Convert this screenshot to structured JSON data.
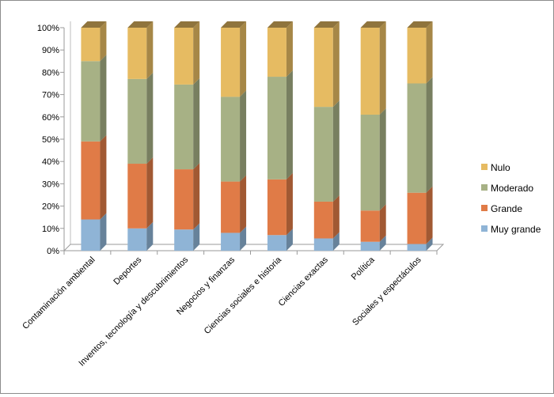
{
  "chart_data": {
    "type": "bar",
    "stacked": true,
    "percent": true,
    "three_d": true,
    "title": "",
    "xlabel": "",
    "ylabel": "",
    "ylim": [
      0,
      100
    ],
    "yticks": [
      "0%",
      "10%",
      "20%",
      "30%",
      "40%",
      "50%",
      "60%",
      "70%",
      "80%",
      "90%",
      "100%"
    ],
    "categories": [
      "Contaminación ambiental",
      "Deportes",
      "Inventos, tecnología y descubrimientos",
      "Negocios y finanzas",
      "Ciencias sociales e historia",
      "Ciencias exactas",
      "Política",
      "Sociales y espectáculos"
    ],
    "series": [
      {
        "name": "Muy grande",
        "color": "#8fb4d6",
        "values": [
          14,
          10,
          9.5,
          8,
          7,
          5.5,
          4,
          3
        ]
      },
      {
        "name": "Grande",
        "color": "#e07b47",
        "values": [
          35,
          29,
          27,
          23,
          25,
          16.5,
          14,
          23
        ]
      },
      {
        "name": "Moderado",
        "color": "#a7b185",
        "values": [
          36,
          38,
          38,
          38,
          46,
          42.5,
          43,
          49
        ]
      },
      {
        "name": "Nulo",
        "color": "#e6bb62",
        "values": [
          15,
          23,
          25.5,
          31,
          22,
          35.5,
          39,
          25
        ]
      }
    ],
    "legend_position": "right",
    "grid": false
  }
}
